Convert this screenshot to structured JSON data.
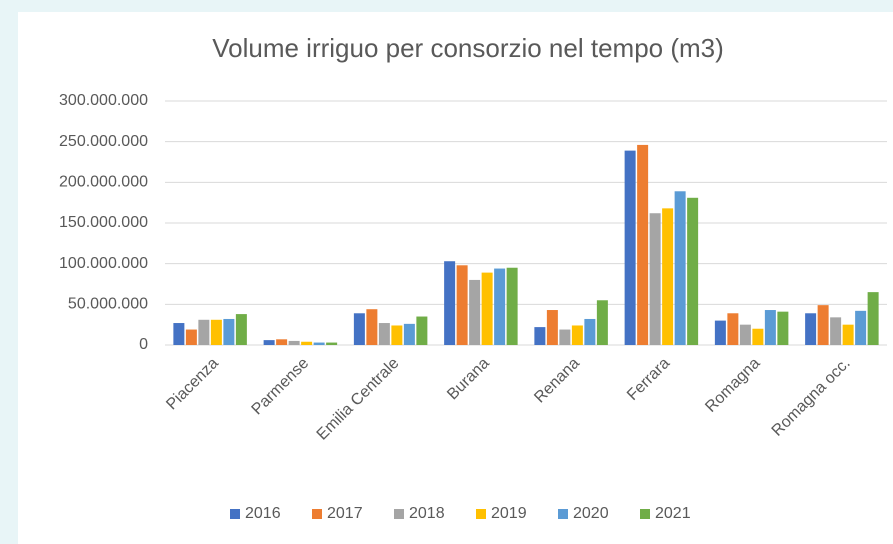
{
  "chart_data": {
    "type": "bar",
    "title": "Volume irriguo per consorzio nel tempo (m3)",
    "categories": [
      "Piacenza",
      "Parmense",
      "Emilia Centrale",
      "Burana",
      "Renana",
      "Ferrara",
      "Romagna",
      "Romagna occ."
    ],
    "series": [
      {
        "name": "2016",
        "color": "#4472c4",
        "values": [
          27000000,
          6000000,
          39000000,
          103000000,
          22000000,
          239000000,
          30000000,
          39000000
        ]
      },
      {
        "name": "2017",
        "color": "#ed7d31",
        "values": [
          19000000,
          7000000,
          44000000,
          98000000,
          43000000,
          246000000,
          39000000,
          49000000
        ]
      },
      {
        "name": "2018",
        "color": "#a5a5a5",
        "values": [
          31000000,
          5000000,
          27000000,
          80000000,
          19000000,
          162000000,
          25000000,
          34000000
        ]
      },
      {
        "name": "2019",
        "color": "#ffc000",
        "values": [
          31000000,
          4000000,
          24000000,
          89000000,
          24000000,
          168000000,
          20000000,
          25000000
        ]
      },
      {
        "name": "2020",
        "color": "#5b9bd5",
        "values": [
          32000000,
          3000000,
          26000000,
          94000000,
          32000000,
          189000000,
          43000000,
          42000000
        ]
      },
      {
        "name": "2021",
        "color": "#70ad47",
        "values": [
          38000000,
          3000000,
          35000000,
          95000000,
          55000000,
          181000000,
          41000000,
          65000000
        ]
      }
    ],
    "ylim": [
      0,
      300000000
    ],
    "yticks": [
      0,
      {
        "value": 50000000,
        "label": "50.000.000"
      },
      {
        "value": 100000000,
        "label": "100.000.000"
      },
      {
        "value": 150000000,
        "label": "150.000.000"
      },
      {
        "value": 200000000,
        "label": "200.000.000"
      },
      {
        "value": 250000000,
        "label": "250.000.000"
      },
      {
        "value": 300000000,
        "label": "300.000.000"
      }
    ],
    "grid": true,
    "legend": "bottom"
  }
}
